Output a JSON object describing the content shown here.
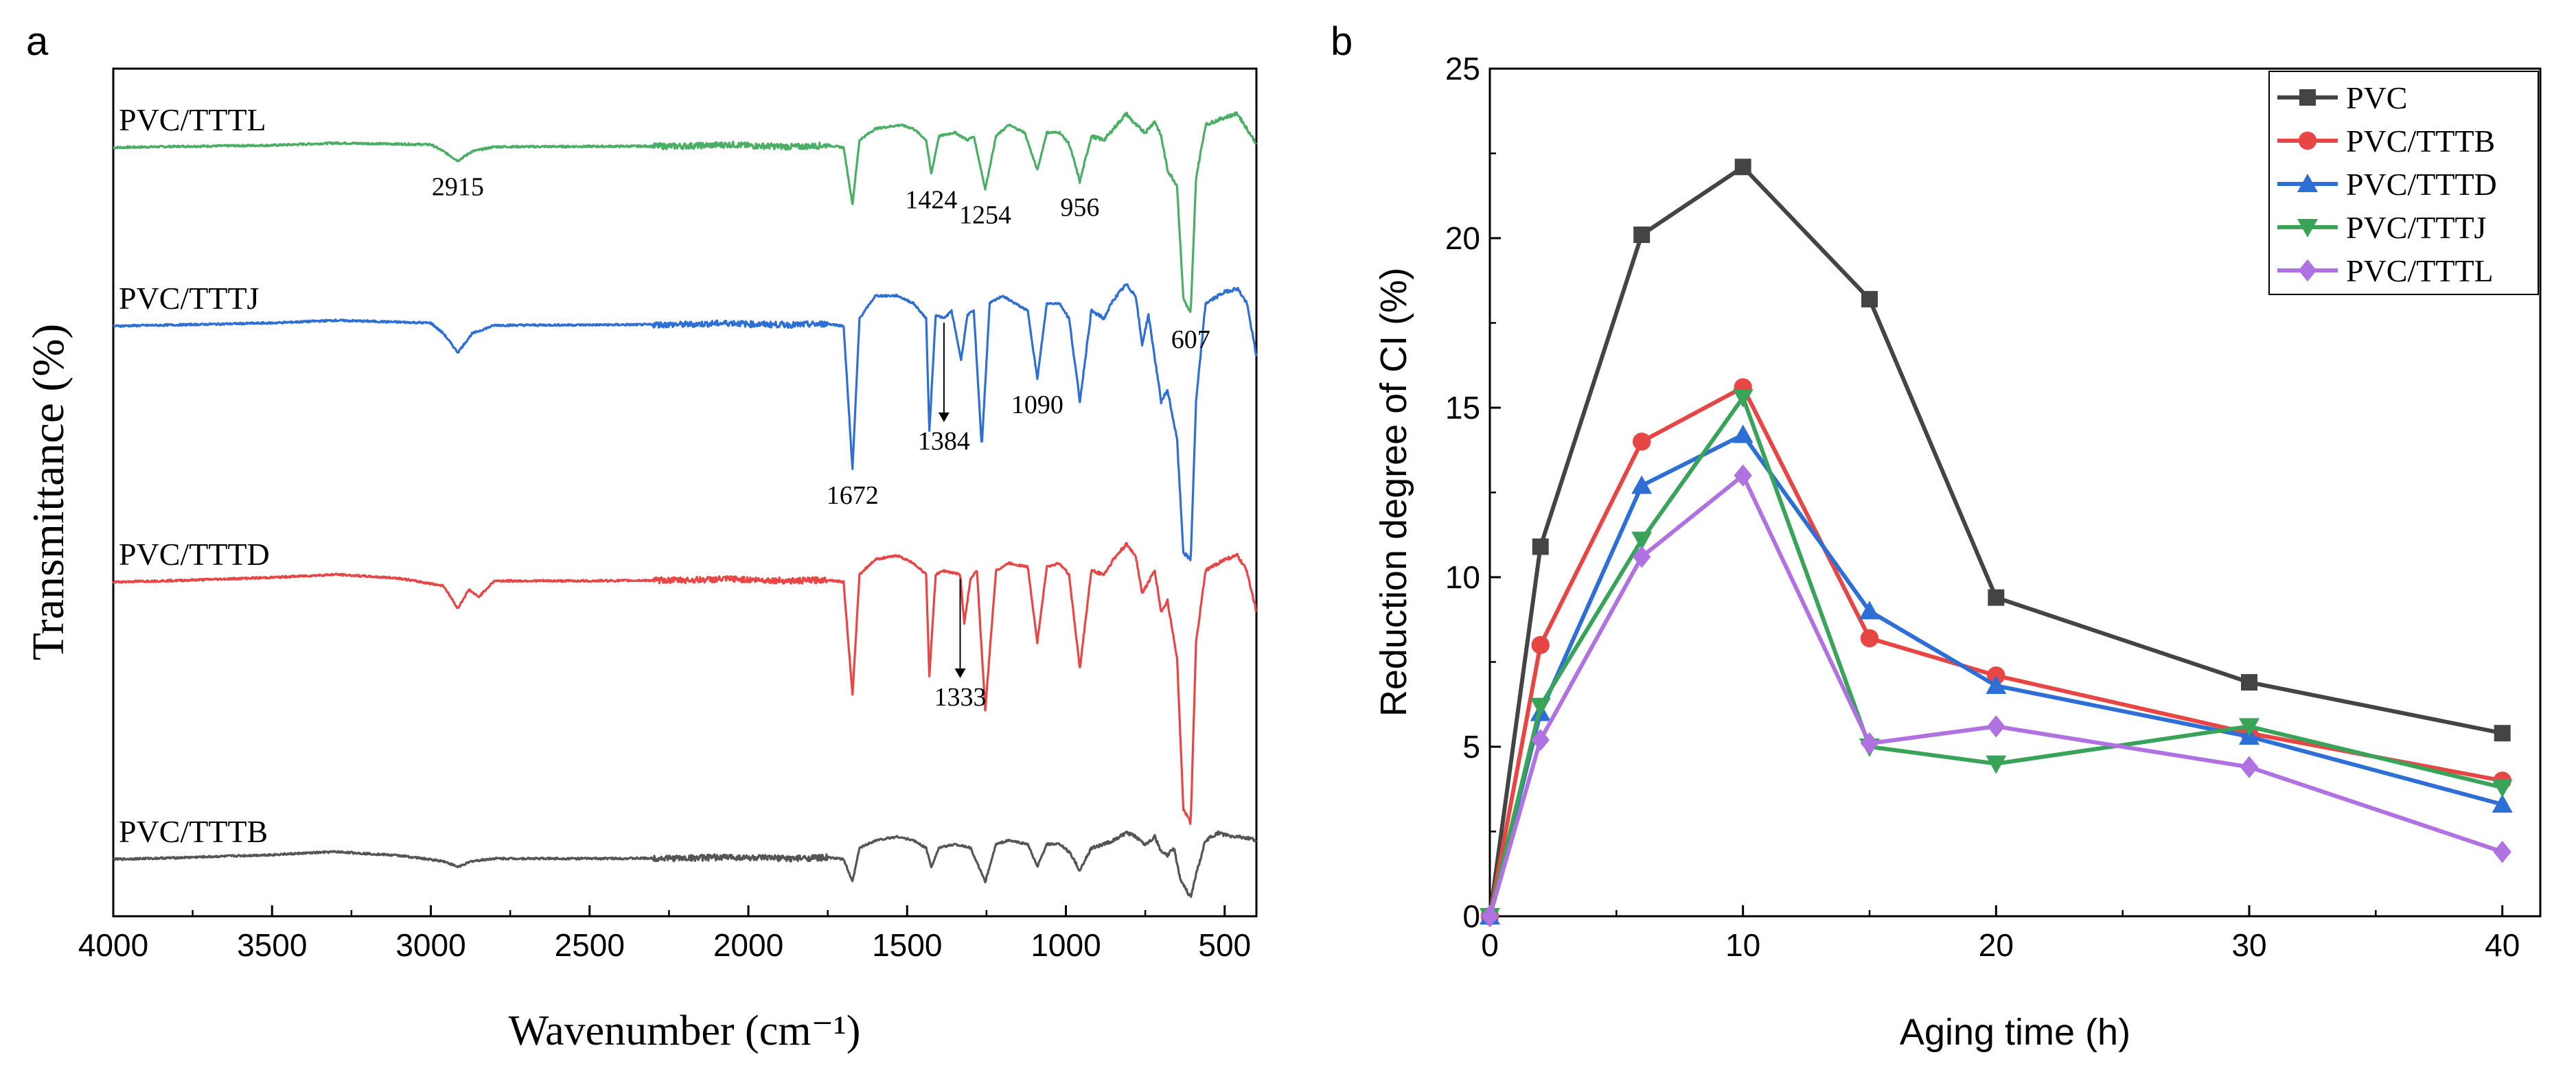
{
  "panels": {
    "a": {
      "label": "a"
    },
    "b": {
      "label": "b"
    }
  },
  "chart_data": [
    {
      "type": "line",
      "panel": "a",
      "xlabel": "Wavenumber (cm⁻¹)",
      "ylabel": "Transmittance (%)",
      "xlim": [
        4000,
        400
      ],
      "x_reversed": true,
      "x_ticks": [
        4000,
        3500,
        3000,
        2500,
        2000,
        1500,
        1000,
        500
      ],
      "y_ticks_shown": false,
      "grid": false,
      "series": [
        {
          "name": "PVC/TTTL",
          "color": "#4aaf64",
          "baseline": 50,
          "points": [
            [
              4000,
              0
            ],
            [
              3800,
              0.3
            ],
            [
              3500,
              0.6
            ],
            [
              3300,
              1.2
            ],
            [
              3000,
              0.8
            ],
            [
              2960,
              -1
            ],
            [
              2915,
              -3.5
            ],
            [
              2870,
              -1
            ],
            [
              2800,
              0.2
            ],
            [
              2500,
              0.3
            ],
            [
              2200,
              0.4
            ],
            [
              2050,
              0.8
            ],
            [
              2000,
              0.5
            ],
            [
              1850,
              0.2
            ],
            [
              1750,
              0.6
            ],
            [
              1700,
              0
            ],
            [
              1672,
              -15
            ],
            [
              1650,
              2
            ],
            [
              1600,
              5
            ],
            [
              1520,
              6
            ],
            [
              1480,
              5
            ],
            [
              1440,
              2
            ],
            [
              1424,
              -7
            ],
            [
              1400,
              3
            ],
            [
              1350,
              4
            ],
            [
              1310,
              2
            ],
            [
              1290,
              3
            ],
            [
              1254,
              -11
            ],
            [
              1220,
              3
            ],
            [
              1180,
              6
            ],
            [
              1130,
              4
            ],
            [
              1090,
              -6
            ],
            [
              1060,
              4
            ],
            [
              1020,
              4
            ],
            [
              990,
              1
            ],
            [
              956,
              -9
            ],
            [
              920,
              3
            ],
            [
              880,
              2
            ],
            [
              850,
              5
            ],
            [
              810,
              9
            ],
            [
              780,
              6
            ],
            [
              750,
              4
            ],
            [
              720,
              7
            ],
            [
              700,
              3
            ],
            [
              680,
              -6
            ],
            [
              650,
              -10
            ],
            [
              630,
              -40
            ],
            [
              607,
              -44
            ],
            [
              590,
              -8
            ],
            [
              560,
              6
            ],
            [
              500,
              8
            ],
            [
              460,
              9
            ],
            [
              430,
              5
            ],
            [
              400,
              1
            ]
          ],
          "annotations": [
            {
              "text": "2915",
              "x": 2915
            },
            {
              "text": "1424",
              "x": 1424
            },
            {
              "text": "1254",
              "x": 1254
            },
            {
              "text": "956",
              "x": 956
            },
            {
              "text": "607",
              "x": 607
            }
          ]
        },
        {
          "name": "PVC/TTTJ",
          "color": "#2e6fd6",
          "baseline": 50,
          "points": [
            [
              4000,
              0
            ],
            [
              3800,
              0.3
            ],
            [
              3500,
              0.8
            ],
            [
              3300,
              1.5
            ],
            [
              3000,
              0.8
            ],
            [
              2960,
              -2
            ],
            [
              2915,
              -7
            ],
            [
              2870,
              -2
            ],
            [
              2800,
              0.2
            ],
            [
              2500,
              0.3
            ],
            [
              2200,
              0.4
            ],
            [
              2050,
              0.8
            ],
            [
              2000,
              0.5
            ],
            [
              1850,
              0.3
            ],
            [
              1750,
              0.6
            ],
            [
              1700,
              0
            ],
            [
              1672,
              -38
            ],
            [
              1650,
              2
            ],
            [
              1600,
              8
            ],
            [
              1530,
              8
            ],
            [
              1480,
              6
            ],
            [
              1440,
              2
            ],
            [
              1430,
              -28
            ],
            [
              1410,
              3
            ],
            [
              1384,
              2
            ],
            [
              1360,
              4
            ],
            [
              1330,
              -9
            ],
            [
              1310,
              3
            ],
            [
              1290,
              4
            ],
            [
              1265,
              -32
            ],
            [
              1240,
              6
            ],
            [
              1200,
              8
            ],
            [
              1160,
              6
            ],
            [
              1120,
              4
            ],
            [
              1090,
              -14
            ],
            [
              1060,
              6
            ],
            [
              1020,
              6
            ],
            [
              990,
              2
            ],
            [
              956,
              -20
            ],
            [
              920,
              4
            ],
            [
              880,
              2
            ],
            [
              850,
              7
            ],
            [
              810,
              11
            ],
            [
              780,
              8
            ],
            [
              760,
              -5
            ],
            [
              740,
              3
            ],
            [
              700,
              -20
            ],
            [
              680,
              -17
            ],
            [
              650,
              -30
            ],
            [
              630,
              -60
            ],
            [
              607,
              -62
            ],
            [
              590,
              -20
            ],
            [
              560,
              6
            ],
            [
              500,
              9
            ],
            [
              460,
              10
            ],
            [
              430,
              6
            ],
            [
              400,
              -8
            ]
          ],
          "annotations": [
            {
              "text": "1672",
              "x": 1672
            },
            {
              "text": "1384",
              "x": 1384,
              "arrow": true
            },
            {
              "text": "1090",
              "x": 1090
            }
          ]
        },
        {
          "name": "PVC/TTTD",
          "color": "#e84545",
          "baseline": 50,
          "points": [
            [
              4000,
              0
            ],
            [
              3800,
              0.4
            ],
            [
              3500,
              1.2
            ],
            [
              3300,
              2
            ],
            [
              3100,
              1
            ],
            [
              2960,
              -1
            ],
            [
              2915,
              -7
            ],
            [
              2880,
              -2
            ],
            [
              2850,
              -4
            ],
            [
              2800,
              0.3
            ],
            [
              2500,
              0.3
            ],
            [
              2200,
              0.5
            ],
            [
              2050,
              0.8
            ],
            [
              2000,
              0.6
            ],
            [
              1850,
              0.3
            ],
            [
              1750,
              0.6
            ],
            [
              1700,
              0
            ],
            [
              1672,
              -30
            ],
            [
              1650,
              2
            ],
            [
              1600,
              6
            ],
            [
              1530,
              7
            ],
            [
              1480,
              5
            ],
            [
              1440,
              2
            ],
            [
              1430,
              -25
            ],
            [
              1410,
              2
            ],
            [
              1385,
              3
            ],
            [
              1333,
              2
            ],
            [
              1320,
              -11
            ],
            [
              1300,
              1
            ],
            [
              1280,
              3
            ],
            [
              1254,
              -34
            ],
            [
              1220,
              3
            ],
            [
              1180,
              5
            ],
            [
              1120,
              4
            ],
            [
              1090,
              -16
            ],
            [
              1060,
              4
            ],
            [
              1020,
              5
            ],
            [
              990,
              2
            ],
            [
              956,
              -23
            ],
            [
              920,
              3
            ],
            [
              880,
              2
            ],
            [
              850,
              6
            ],
            [
              810,
              10
            ],
            [
              780,
              7
            ],
            [
              760,
              -3
            ],
            [
              720,
              3
            ],
            [
              700,
              -8
            ],
            [
              680,
              -5
            ],
            [
              650,
              -20
            ],
            [
              630,
              -60
            ],
            [
              607,
              -64
            ],
            [
              590,
              -16
            ],
            [
              560,
              3
            ],
            [
              500,
              6
            ],
            [
              460,
              7
            ],
            [
              430,
              3
            ],
            [
              400,
              -8
            ]
          ],
          "annotations": [
            {
              "text": "1333",
              "x": 1333,
              "arrow": true
            }
          ]
        },
        {
          "name": "PVC/TTTB",
          "color": "#555555",
          "baseline": 50,
          "points": [
            [
              4000,
              0
            ],
            [
              3800,
              0.4
            ],
            [
              3500,
              1.2
            ],
            [
              3300,
              2
            ],
            [
              3100,
              1
            ],
            [
              2960,
              -0.5
            ],
            [
              2915,
              -2
            ],
            [
              2870,
              -0.5
            ],
            [
              2800,
              0.2
            ],
            [
              2500,
              0.2
            ],
            [
              2200,
              0.3
            ],
            [
              2050,
              0.6
            ],
            [
              2000,
              0.4
            ],
            [
              1850,
              0.2
            ],
            [
              1750,
              0.5
            ],
            [
              1700,
              0
            ],
            [
              1672,
              -6
            ],
            [
              1650,
              3
            ],
            [
              1600,
              5
            ],
            [
              1530,
              6
            ],
            [
              1480,
              5
            ],
            [
              1440,
              3
            ],
            [
              1424,
              -2
            ],
            [
              1400,
              3
            ],
            [
              1350,
              4
            ],
            [
              1300,
              3
            ],
            [
              1254,
              -6
            ],
            [
              1220,
              4
            ],
            [
              1180,
              5
            ],
            [
              1120,
              4
            ],
            [
              1090,
              -2
            ],
            [
              1060,
              4
            ],
            [
              1020,
              4
            ],
            [
              990,
              2
            ],
            [
              956,
              -3
            ],
            [
              920,
              3
            ],
            [
              880,
              4
            ],
            [
              850,
              5
            ],
            [
              810,
              7
            ],
            [
              780,
              6
            ],
            [
              750,
              4
            ],
            [
              720,
              6
            ],
            [
              700,
              2
            ],
            [
              680,
              1
            ],
            [
              660,
              3
            ],
            [
              640,
              -5
            ],
            [
              615,
              -9
            ],
            [
              607,
              -10
            ],
            [
              590,
              -4
            ],
            [
              560,
              5
            ],
            [
              520,
              7
            ],
            [
              480,
              6
            ],
            [
              450,
              6
            ],
            [
              400,
              5
            ]
          ],
          "annotations": []
        }
      ]
    },
    {
      "type": "line",
      "panel": "b",
      "xlabel": "Aging time (h)",
      "ylabel": "Reduction degree of CI (%)",
      "xlim": [
        0,
        41.5
      ],
      "ylim": [
        0,
        25
      ],
      "x_ticks": [
        0,
        10,
        20,
        30,
        40
      ],
      "y_ticks": [
        0,
        5,
        10,
        15,
        20,
        25
      ],
      "grid": false,
      "legend": "top-right",
      "x": [
        0,
        2,
        6,
        10,
        15,
        20,
        30,
        40
      ],
      "series": [
        {
          "name": "PVC",
          "color": "#444444",
          "marker": "square",
          "values": [
            0,
            10.9,
            20.1,
            22.1,
            18.2,
            9.4,
            6.9,
            5.4
          ]
        },
        {
          "name": "PVC/TTTB",
          "color": "#e84545",
          "marker": "circle",
          "values": [
            0,
            8.0,
            14.0,
            15.6,
            8.2,
            7.1,
            5.4,
            4.0
          ]
        },
        {
          "name": "PVC/TTTD",
          "color": "#2e6fd6",
          "marker": "triangle-up",
          "values": [
            0,
            6.0,
            12.7,
            14.2,
            9.0,
            6.8,
            5.3,
            3.3
          ]
        },
        {
          "name": "PVC/TTTJ",
          "color": "#3aa35a",
          "marker": "triangle-down",
          "values": [
            0,
            6.2,
            11.1,
            15.3,
            5.0,
            4.5,
            5.6,
            3.8
          ]
        },
        {
          "name": "PVC/TTTL",
          "color": "#b072e0",
          "marker": "diamond",
          "values": [
            0,
            5.2,
            10.6,
            13.0,
            5.1,
            5.6,
            4.4,
            1.9
          ]
        }
      ]
    }
  ]
}
